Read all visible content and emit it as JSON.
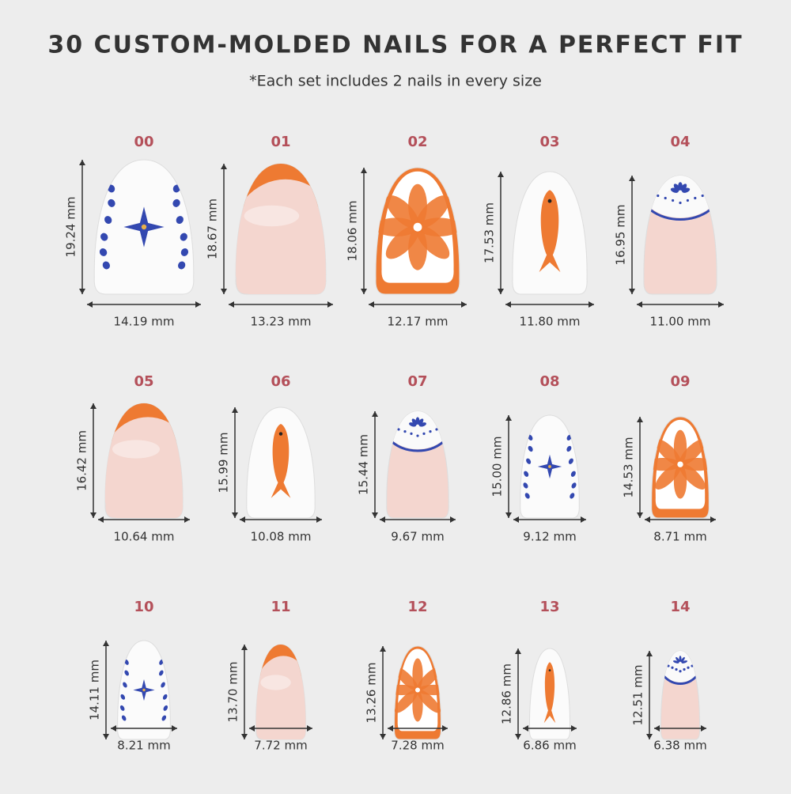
{
  "title": "30 CUSTOM-MOLDED NAILS FOR A PERFECT FIT",
  "subtitle": "*Each set includes 2 nails in every size",
  "nails": [
    {
      "size": "00",
      "height": "19.24 mm",
      "width": "14.19 mm"
    },
    {
      "size": "01",
      "height": "18.67 mm",
      "width": "13.23 mm"
    },
    {
      "size": "02",
      "height": "18.06 mm",
      "width": "12.17 mm"
    },
    {
      "size": "03",
      "height": "17.53 mm",
      "width": "11.80 mm"
    },
    {
      "size": "04",
      "height": "16.95 mm",
      "width": "11.00 mm"
    },
    {
      "size": "05",
      "height": "16.42 mm",
      "width": "10.64 mm"
    },
    {
      "size": "06",
      "height": "15.99 mm",
      "width": "10.08 mm"
    },
    {
      "size": "07",
      "height": "15.44 mm",
      "width": "9.67 mm"
    },
    {
      "size": "08",
      "height": "15.00 mm",
      "width": "9.12 mm"
    },
    {
      "size": "09",
      "height": "14.53 mm",
      "width": "8.71 mm"
    },
    {
      "size": "10",
      "height": "14.11 mm",
      "width": "8.21 mm"
    },
    {
      "size": "11",
      "height": "13.70 mm",
      "width": "7.72 mm"
    },
    {
      "size": "12",
      "height": "13.26 mm",
      "width": "7.28 mm"
    },
    {
      "size": "13",
      "height": "12.86 mm",
      "width": "6.86 mm"
    },
    {
      "size": "14",
      "height": "12.51 mm",
      "width": "6.38 mm"
    }
  ]
}
